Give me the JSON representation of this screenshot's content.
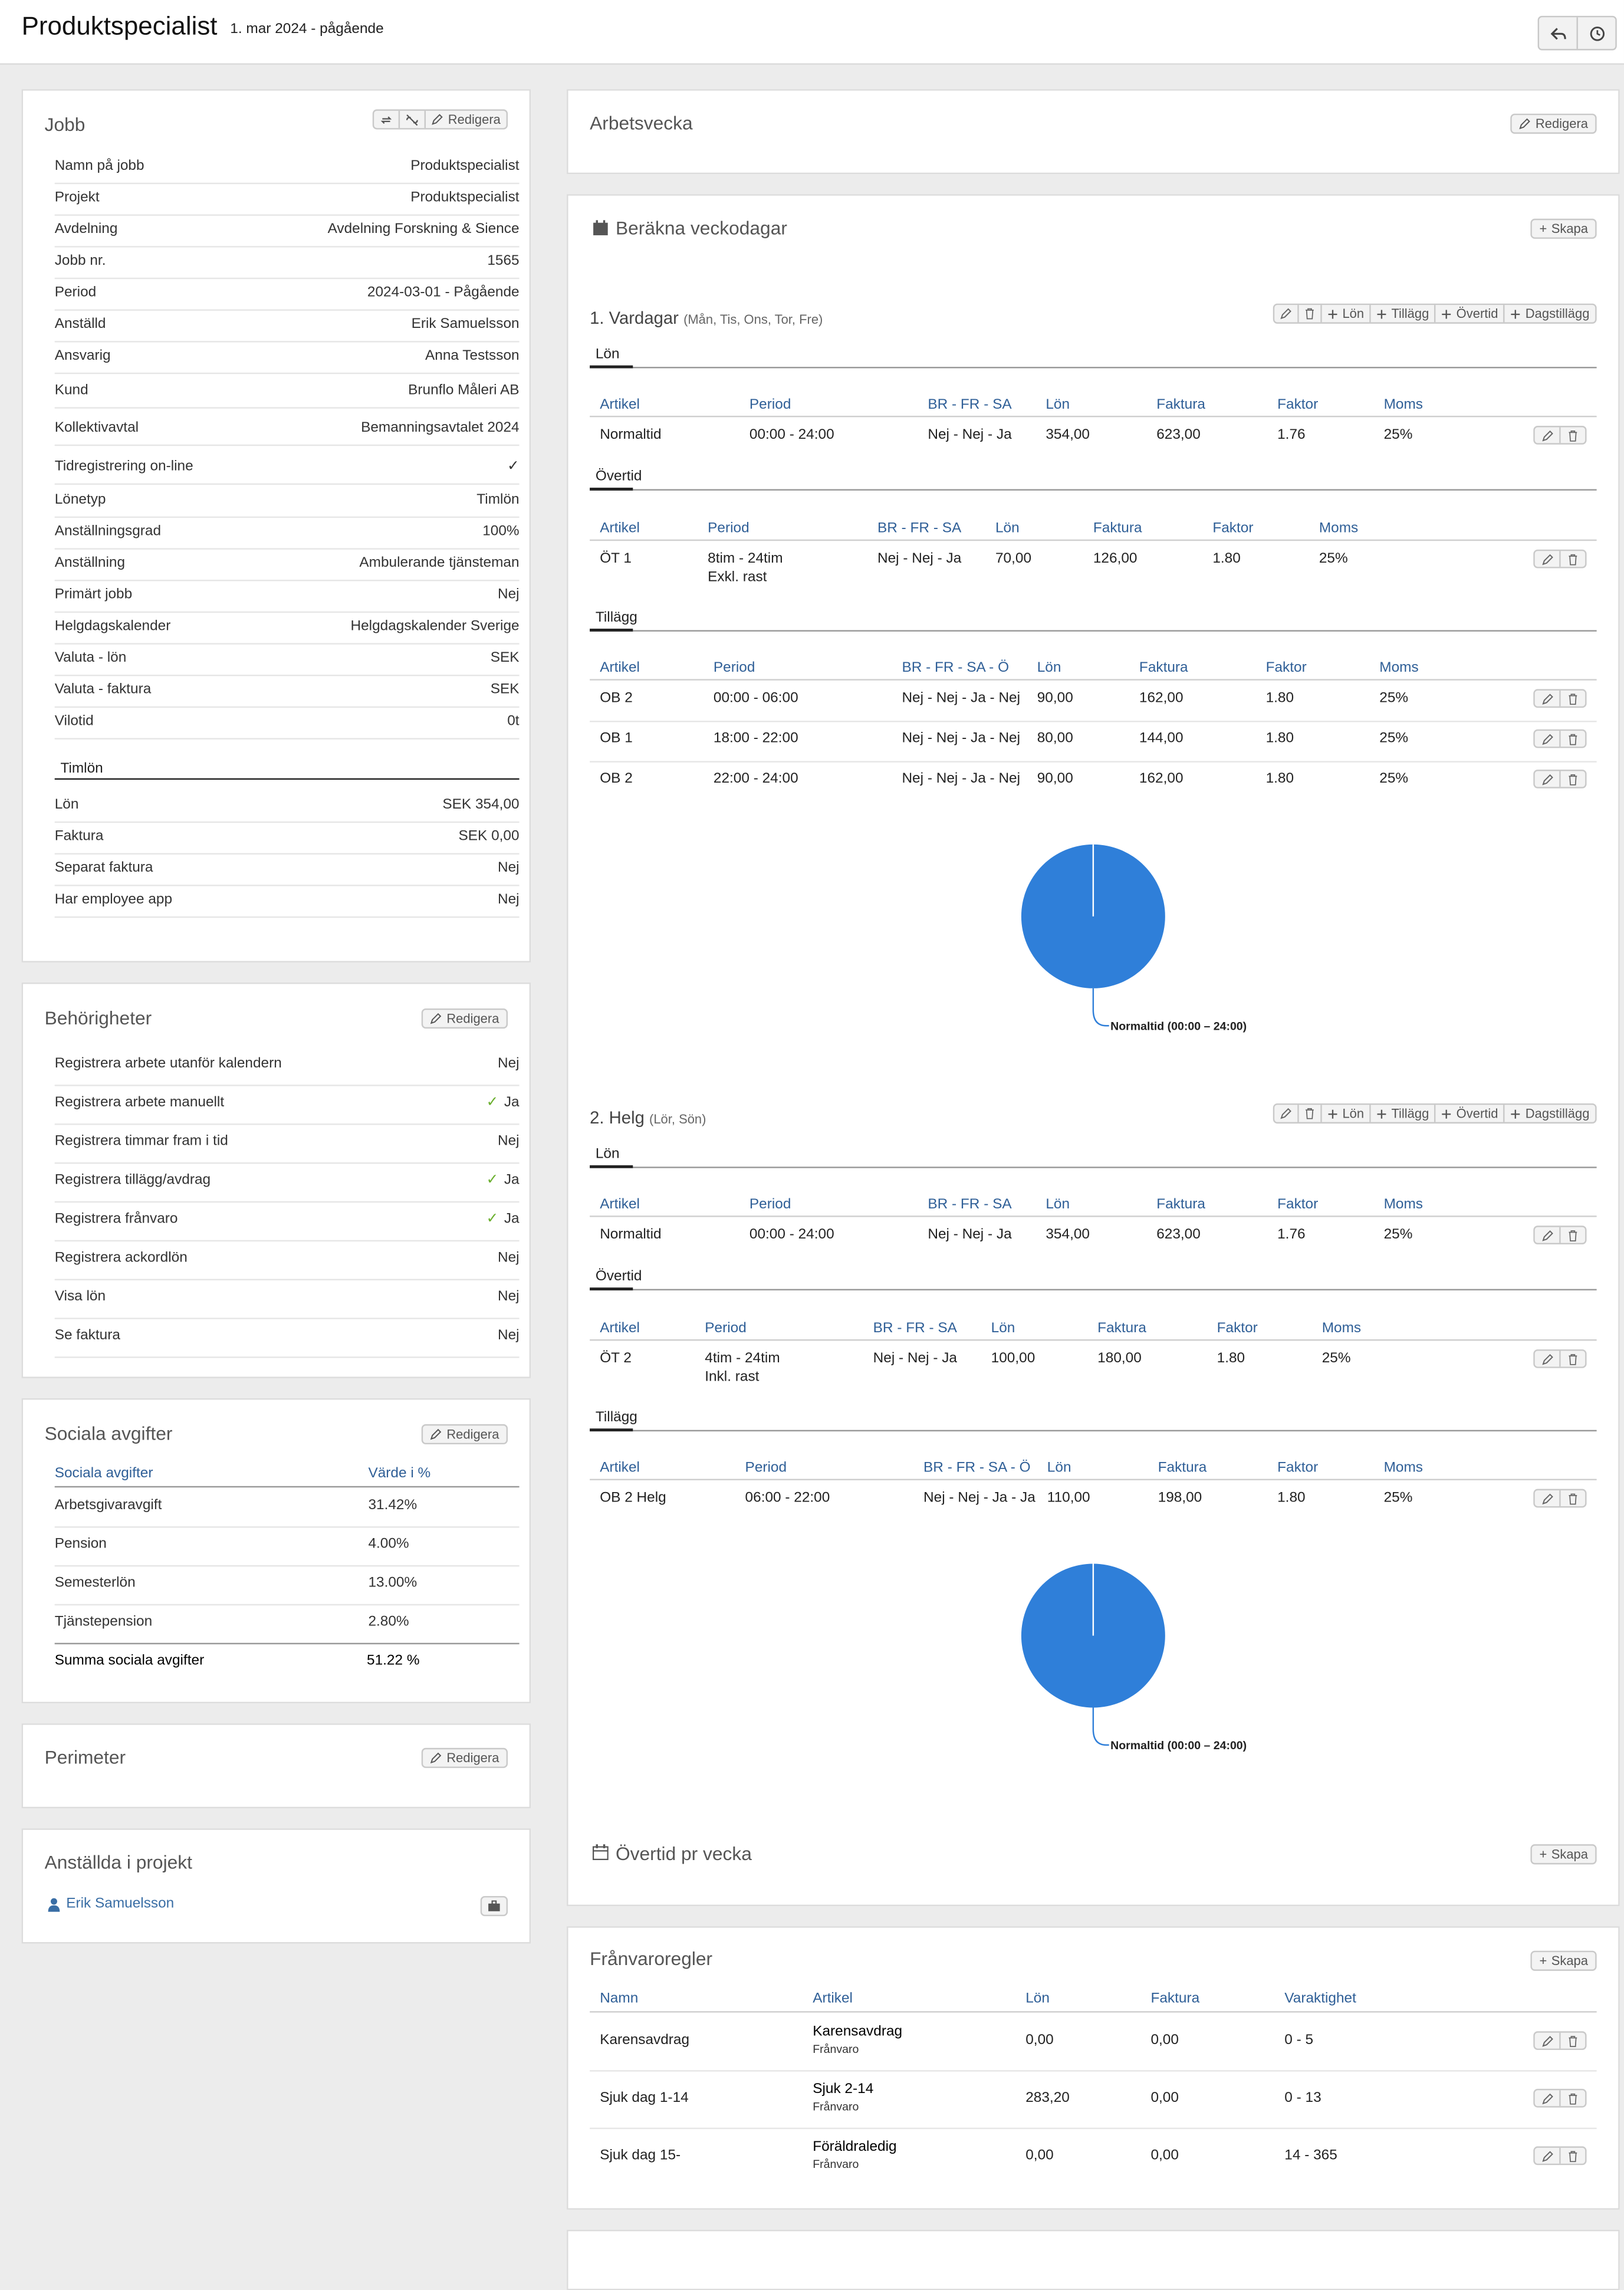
{
  "header": {
    "title": "Produktspecialist",
    "subtitle": "1. mar 2024 - pågående"
  },
  "jobb": {
    "title": "Jobb",
    "edit": "Redigera",
    "rows": [
      {
        "k": "Namn på jobb",
        "v": "Produktspecialist"
      },
      {
        "k": "Projekt",
        "v": "Produktspecialist"
      },
      {
        "k": "Avdelning",
        "v": "Avdelning Forskning & Sience"
      },
      {
        "k": "Jobb nr.",
        "v": "1565"
      },
      {
        "k": "Period",
        "v": "2024-03-01 - Pågående"
      },
      {
        "k": "Anställd",
        "v": "Erik Samuelsson"
      },
      {
        "k": "Ansvarig",
        "v": "Anna Testsson"
      },
      {
        "k": "Kund",
        "v": "Brunflo Måleri AB"
      },
      {
        "k": "Kollektivavtal",
        "v": "Bemanningsavtalet 2024"
      },
      {
        "k": "Tidregistrering on-line",
        "v": "✓"
      },
      {
        "k": "Lönetyp",
        "v": "Timlön"
      },
      {
        "k": "Anställningsgrad",
        "v": "100%"
      },
      {
        "k": "Anställning",
        "v": "Ambulerande tjänsteman"
      },
      {
        "k": "Primärt jobb",
        "v": "Nej"
      },
      {
        "k": "Helgdagskalender",
        "v": "Helgdagskalender Sverige"
      },
      {
        "k": "Valuta - lön",
        "v": "SEK"
      },
      {
        "k": "Valuta - faktura",
        "v": "SEK"
      },
      {
        "k": "Vilotid",
        "v": "0t"
      }
    ],
    "timlon_title": "Timlön",
    "timlon_rows": [
      {
        "k": "Lön",
        "v": "SEK 354,00"
      },
      {
        "k": "Faktura",
        "v": "SEK 0,00"
      },
      {
        "k": "Separat faktura",
        "v": "Nej"
      },
      {
        "k": "Har employee app",
        "v": "Nej"
      }
    ]
  },
  "behorigheter": {
    "title": "Behörigheter",
    "edit": "Redigera",
    "rows": [
      {
        "k": "Registrera arbete utanför kalendern",
        "v": "Nej"
      },
      {
        "k": "Registrera arbete manuellt",
        "v": "Ja"
      },
      {
        "k": "Registrera timmar fram i tid",
        "v": "Nej"
      },
      {
        "k": "Registrera tillägg/avdrag",
        "v": "Ja"
      },
      {
        "k": "Registrera frånvaro",
        "v": "Ja"
      },
      {
        "k": "Registrera ackordlön",
        "v": "Nej"
      },
      {
        "k": "Visa lön",
        "v": "Nej"
      },
      {
        "k": "Se faktura",
        "v": "Nej"
      }
    ]
  },
  "sociala": {
    "title": "Sociala avgifter",
    "edit": "Redigera",
    "h1": "Sociala avgifter",
    "h2": "Värde i %",
    "rows": [
      {
        "k": "Arbetsgivaravgift",
        "v": "31.42%"
      },
      {
        "k": "Pension",
        "v": "4.00%"
      },
      {
        "k": "Semesterlön",
        "v": "13.00%"
      },
      {
        "k": "Tjänstepension",
        "v": "2.80%"
      }
    ],
    "sum_k": "Summa sociala avgifter",
    "sum_v": "51.22 %"
  },
  "perimeter": {
    "title": "Perimeter",
    "edit": "Redigera"
  },
  "anstallda": {
    "title": "Anställda i projekt",
    "name": "Erik Samuelsson"
  },
  "arbetsvecka": {
    "title": "Arbetsvecka",
    "edit": "Redigera"
  },
  "berakna": {
    "title": "Beräkna veckodagar",
    "create": "Skapa",
    "btns": {
      "lon": "Lön",
      "tillagg": "Tillägg",
      "overtid": "Övertid",
      "dagstillagg": "Dagstillägg"
    },
    "tab_lon": "Lön",
    "tab_overtid": "Övertid",
    "tab_tillagg": "Tillägg",
    "g1": {
      "name": "1. Vardagar",
      "days": "(Mån, Tis, Ons, Tor, Fre)",
      "lon_head": [
        "Artikel",
        "Period",
        "BR - FR - SA",
        "Lön",
        "Faktura",
        "Faktor",
        "Moms"
      ],
      "lon_rows": [
        [
          "Normaltid",
          "00:00 - 24:00",
          "Nej - Nej - Ja",
          "354,00",
          "623,00",
          "1.76",
          "25%"
        ]
      ],
      "ot_head": [
        "Artikel",
        "Period",
        "BR - FR - SA",
        "Lön",
        "Faktura",
        "Faktor",
        "Moms"
      ],
      "ot_rows": [
        [
          "ÖT 1",
          "8tim - 24tim",
          "Nej - Nej - Ja",
          "70,00",
          "126,00",
          "1.80",
          "25%",
          "Exkl. rast"
        ]
      ],
      "ti_head": [
        "Artikel",
        "Period",
        "BR - FR - SA - Ö",
        "Lön",
        "Faktura",
        "Faktor",
        "Moms"
      ],
      "ti_rows": [
        [
          "OB 2",
          "00:00 - 06:00",
          "Nej - Nej - Ja - Nej",
          "90,00",
          "162,00",
          "1.80",
          "25%"
        ],
        [
          "OB 1",
          "18:00 - 22:00",
          "Nej - Nej - Ja - Nej",
          "80,00",
          "144,00",
          "1.80",
          "25%"
        ],
        [
          "OB 2",
          "22:00 - 24:00",
          "Nej - Nej - Ja - Nej",
          "90,00",
          "162,00",
          "1.80",
          "25%"
        ]
      ],
      "pie_label": "Normaltid (00:00 – 24:00)"
    },
    "g2": {
      "name": "2. Helg",
      "days": "(Lör, Sön)",
      "lon_head": [
        "Artikel",
        "Period",
        "BR - FR - SA",
        "Lön",
        "Faktura",
        "Faktor",
        "Moms"
      ],
      "lon_rows": [
        [
          "Normaltid",
          "00:00 - 24:00",
          "Nej - Nej - Ja",
          "354,00",
          "623,00",
          "1.76",
          "25%"
        ]
      ],
      "ot_head": [
        "Artikel",
        "Period",
        "BR - FR - SA",
        "Lön",
        "Faktura",
        "Faktor",
        "Moms"
      ],
      "ot_rows": [
        [
          "ÖT 2",
          "4tim - 24tim",
          "Nej - Nej - Ja",
          "100,00",
          "180,00",
          "1.80",
          "25%",
          "Inkl. rast"
        ]
      ],
      "ti_head": [
        "Artikel",
        "Period",
        "BR - FR - SA - Ö",
        "Lön",
        "Faktura",
        "Faktor",
        "Moms"
      ],
      "ti_rows": [
        [
          "OB 2 Helg",
          "06:00 - 22:00",
          "Nej - Nej - Ja - Ja",
          "110,00",
          "198,00",
          "1.80",
          "25%"
        ]
      ],
      "pie_label": "Normaltid (00:00 – 24:00)"
    },
    "overtid_vecka": "Övertid pr vecka",
    "overtid_create": "Skapa"
  },
  "franvaro": {
    "title": "Frånvaroregler",
    "create": "Skapa",
    "head": [
      "Namn",
      "Artikel",
      "Lön",
      "Faktura",
      "Varaktighet"
    ],
    "rows": [
      {
        "namn": "Karensavdrag",
        "artikel": "Karensavdrag",
        "typ": "Frånvaro",
        "lon": "0,00",
        "faktura": "0,00",
        "var": "0 - 5"
      },
      {
        "namn": "Sjuk dag 1-14",
        "artikel": "Sjuk 2-14",
        "typ": "Frånvaro",
        "lon": "283,20",
        "faktura": "0,00",
        "var": "0 - 13"
      },
      {
        "namn": "Sjuk dag 15-",
        "artikel": "Föräldraledig",
        "typ": "Frånvaro",
        "lon": "0,00",
        "faktura": "0,00",
        "var": "14 - 365"
      }
    ]
  },
  "colors": {
    "link": "#3a6ea5",
    "header_blue": "#2f5f97",
    "pie": "#2f7fd9",
    "check": "#6aaf2e"
  }
}
